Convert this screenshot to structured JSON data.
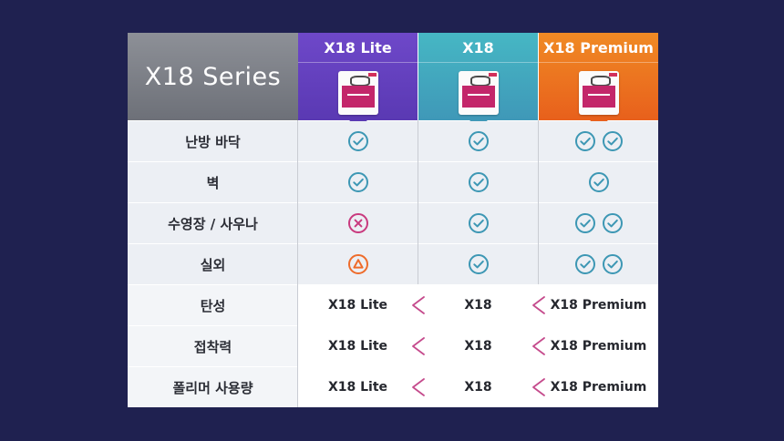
{
  "header": {
    "title": "X18 Series",
    "columns": [
      {
        "name": "X18 Lite"
      },
      {
        "name": "X18"
      },
      {
        "name": "X18 Premium"
      }
    ]
  },
  "rows": [
    {
      "label": "난방 바닥",
      "marks": [
        [
          "check"
        ],
        [
          "check"
        ],
        [
          "check",
          "check"
        ]
      ]
    },
    {
      "label": "벽",
      "marks": [
        [
          "check"
        ],
        [
          "check"
        ],
        [
          "check"
        ]
      ]
    },
    {
      "label": "수영장 / 사우나",
      "marks": [
        [
          "cross"
        ],
        [
          "check"
        ],
        [
          "check",
          "check"
        ]
      ]
    },
    {
      "label": "실외",
      "marks": [
        [
          "triangle"
        ],
        [
          "check"
        ],
        [
          "check",
          "check"
        ]
      ]
    },
    {
      "label": "탄성",
      "compare": [
        "X18 Lite",
        "X18",
        "X18 Premium"
      ]
    },
    {
      "label": "접착력",
      "compare": [
        "X18 Lite",
        "X18",
        "X18 Premium"
      ]
    },
    {
      "label": "폴리머 사용량",
      "compare": [
        "X18 Lite",
        "X18",
        "X18 Premium"
      ]
    }
  ],
  "colors": {
    "check": "#3d97b4",
    "cross": "#c93a7e",
    "triangle": "#ee6c2b",
    "less_than": "#c54a8c"
  }
}
